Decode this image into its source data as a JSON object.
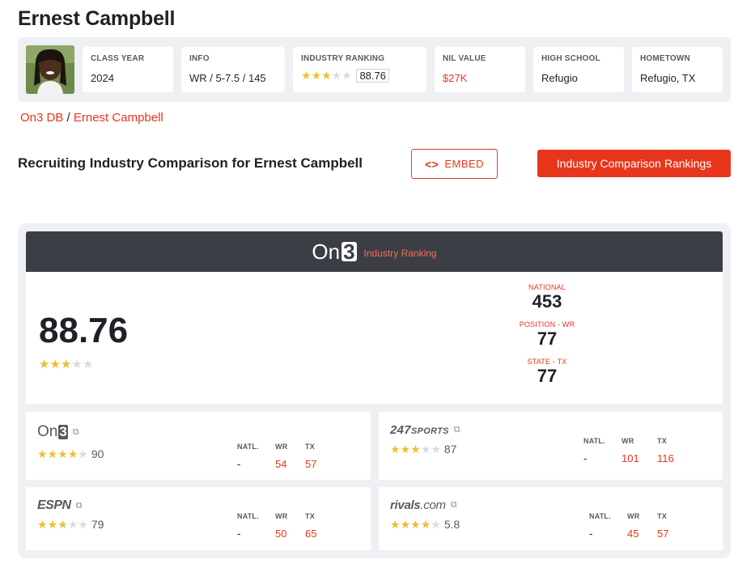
{
  "player": {
    "name": "Ernest Campbell"
  },
  "header": {
    "class_year": {
      "label": "CLASS YEAR",
      "value": "2024"
    },
    "info": {
      "label": "INFO",
      "value": "WR / 5-7.5 / 145"
    },
    "industry_ranking": {
      "label": "INDUSTRY RANKING",
      "stars": 3,
      "value": "88.76"
    },
    "nil_value": {
      "label": "NIL VALUE",
      "value": "$27K"
    },
    "high_school": {
      "label": "HIGH SCHOOL",
      "value": "Refugio"
    },
    "hometown": {
      "label": "HOMETOWN",
      "value": "Refugio, TX"
    }
  },
  "breadcrumb": {
    "root": "On3 DB",
    "separator": "/",
    "current": "Ernest Campbell"
  },
  "section": {
    "title": "Recruiting Industry Comparison for Ernest Campbell",
    "embed_label": "EMBED",
    "embed_icon": "code-icon",
    "rankings_button": "Industry Comparison Rankings"
  },
  "industry": {
    "logo_text": "On",
    "logo_digit": "3",
    "banner_label": "Industry Ranking",
    "rating": "88.76",
    "stars": 3,
    "national": {
      "label": "NATIONAL",
      "value": "453"
    },
    "position": {
      "label": "POSITION - WR",
      "value": "77"
    },
    "state": {
      "label": "STATE - TX",
      "value": "77"
    }
  },
  "services": {
    "on3": {
      "logo_text": "On",
      "logo_digit": "3",
      "stars": 4,
      "rating": "90",
      "natl_label": "NATL.",
      "natl": "-",
      "pos_label": "WR",
      "pos": "54",
      "state_label": "TX",
      "state": "57"
    },
    "s247": {
      "logo_main": "247",
      "logo_sub": "SPORTS",
      "stars": 3,
      "rating": "87",
      "natl_label": "NATL.",
      "natl": "-",
      "pos_label": "WR",
      "pos": "101",
      "state_label": "TX",
      "state": "116"
    },
    "espn": {
      "logo_text": "ESPN",
      "stars": 3,
      "rating": "79",
      "natl_label": "NATL.",
      "natl": "-",
      "pos_label": "WR",
      "pos": "50",
      "state_label": "TX",
      "state": "65"
    },
    "rivals": {
      "logo_main": "rivals",
      "logo_sub": ".com",
      "stars": 4,
      "rating": "5.8",
      "natl_label": "NATL.",
      "natl": "-",
      "pos_label": "WR",
      "pos": "45",
      "state_label": "TX",
      "state": "57"
    }
  },
  "colors": {
    "accent": "#e8361c",
    "star": "#f0be2c",
    "dark_bar": "#3b3e44"
  }
}
